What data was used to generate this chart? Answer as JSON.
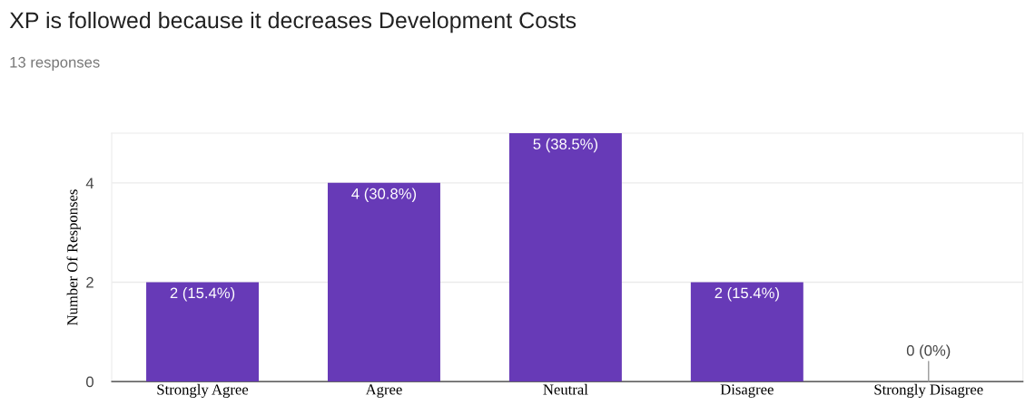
{
  "chart_data": {
    "type": "bar",
    "title": "XP is followed because it decreases Development Costs",
    "subtitle": "13 responses",
    "ylabel": "Number Of Responses",
    "categories": [
      "Strongly Agree",
      "Agree",
      "Neutral",
      "Disagree",
      "Strongly Disagree"
    ],
    "values": [
      2,
      4,
      5,
      2,
      0
    ],
    "value_labels": [
      "2 (15.4%)",
      "4 (30.8%)",
      "5 (38.5%)",
      "2 (15.4%)",
      "0 (0%)"
    ],
    "color": "#673ab7",
    "ylim": [
      0,
      5
    ],
    "yticks": [
      0,
      2,
      4
    ],
    "grid": "y",
    "legend": false
  }
}
